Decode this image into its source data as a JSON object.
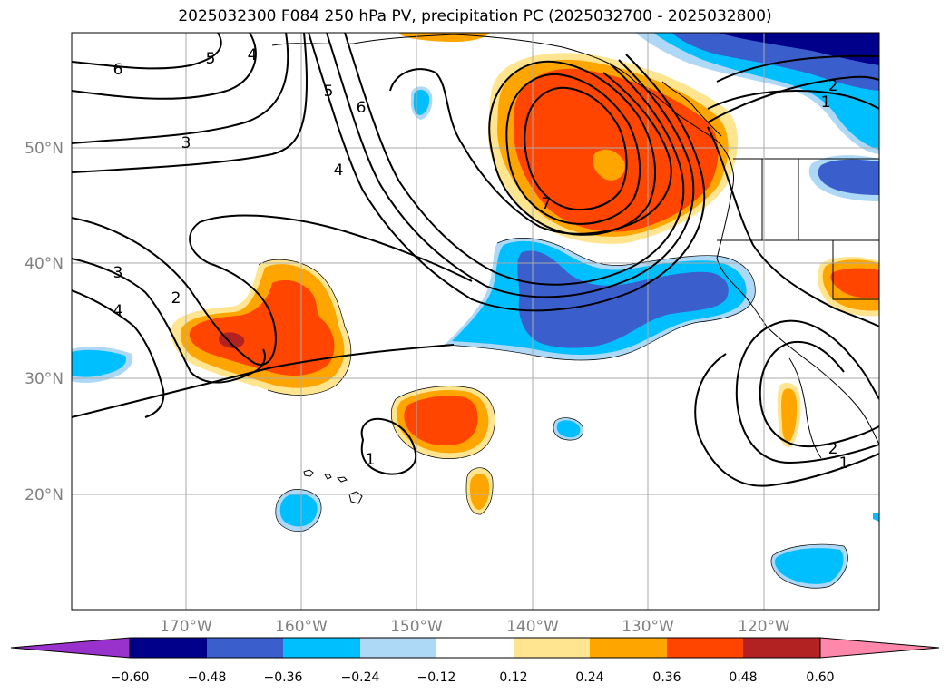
{
  "title": "2025032300 F084 250 hPa PV, precipitation PC (2025032700 - 2025032800)",
  "map": {
    "lat_labels": [
      "50°N",
      "40°N",
      "30°N",
      "20°N"
    ],
    "lon_labels": [
      "170°W",
      "160°W",
      "150°W",
      "140°W",
      "130°W",
      "120°W"
    ],
    "contour_labels": [
      "6",
      "5",
      "4",
      "5",
      "6",
      "3",
      "4",
      "7",
      "3",
      "2",
      "4",
      "1",
      "2",
      "1",
      "2",
      "1"
    ],
    "colors": {
      "pos_012": "#ffe58f",
      "pos_024": "#ffa500",
      "pos_036": "#ff4500",
      "pos_048": "#b22222",
      "neg_012": "#add8f6",
      "neg_024": "#00bfff",
      "neg_036": "#3a5fcd",
      "neg_048": "#00008b"
    }
  },
  "colorbar": {
    "labels": [
      "−0.60",
      "−0.48",
      "−0.36",
      "−0.24",
      "−0.12",
      "0.12",
      "0.24",
      "0.36",
      "0.48",
      "0.60"
    ],
    "colors": [
      "#9932cc",
      "#00008b",
      "#3a5fcd",
      "#00bfff",
      "#add8f6",
      "#ffffff",
      "#ffe58f",
      "#ffa500",
      "#ff4500",
      "#b22222",
      "#ff88aa"
    ]
  }
}
